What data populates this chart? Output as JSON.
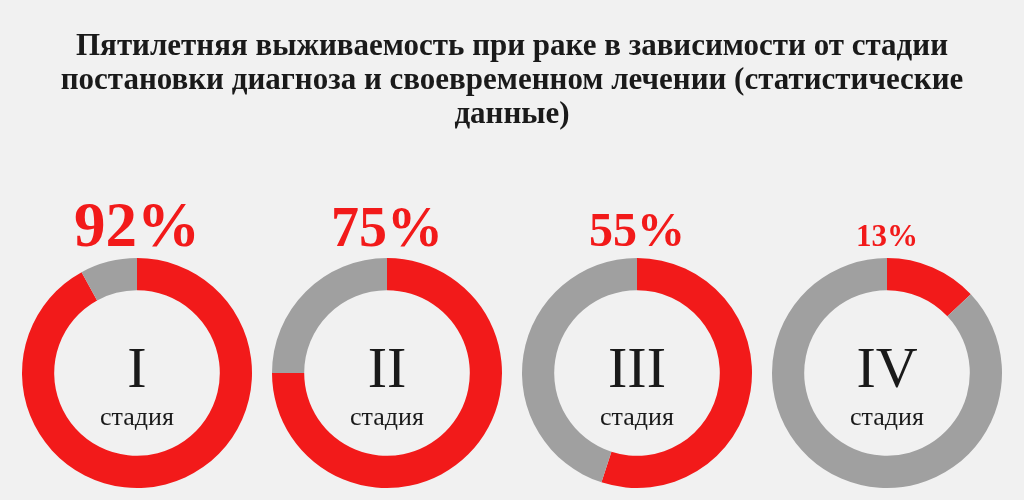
{
  "chart_data": [
    {
      "type": "other",
      "title": "Пятилетняя выживаемость при раке в зависимости от стадии постановки диагноза и своевременном лечении (статистические данные)"
    },
    {
      "type": "donut",
      "categories": [
        null,
        null
      ],
      "values": [
        92,
        8
      ],
      "colors": [
        "#f21a1a",
        "#a0a0a0"
      ],
      "value_labels": [
        "92%",
        null
      ],
      "annotations": [
        "I",
        "стадия"
      ]
    },
    {
      "type": "donut",
      "categories": [
        null,
        null
      ],
      "values": [
        75,
        25
      ],
      "colors": [
        "#f21a1a",
        "#a0a0a0"
      ],
      "value_labels": [
        "75%",
        null
      ],
      "annotations": [
        "II",
        "стадия"
      ]
    },
    {
      "type": "donut",
      "categories": [
        null,
        null
      ],
      "values": [
        55,
        45
      ],
      "colors": [
        "#f21a1a",
        "#a0a0a0"
      ],
      "value_labels": [
        "55%",
        null
      ],
      "annotations": [
        "III",
        "стадия"
      ]
    },
    {
      "type": "donut",
      "categories": [
        null,
        null
      ],
      "values": [
        13,
        87
      ],
      "colors": [
        "#f21a1a",
        "#a0a0a0"
      ],
      "value_labels": [
        "13%",
        null
      ],
      "annotations": [
        "IV",
        "стадия"
      ]
    }
  ]
}
